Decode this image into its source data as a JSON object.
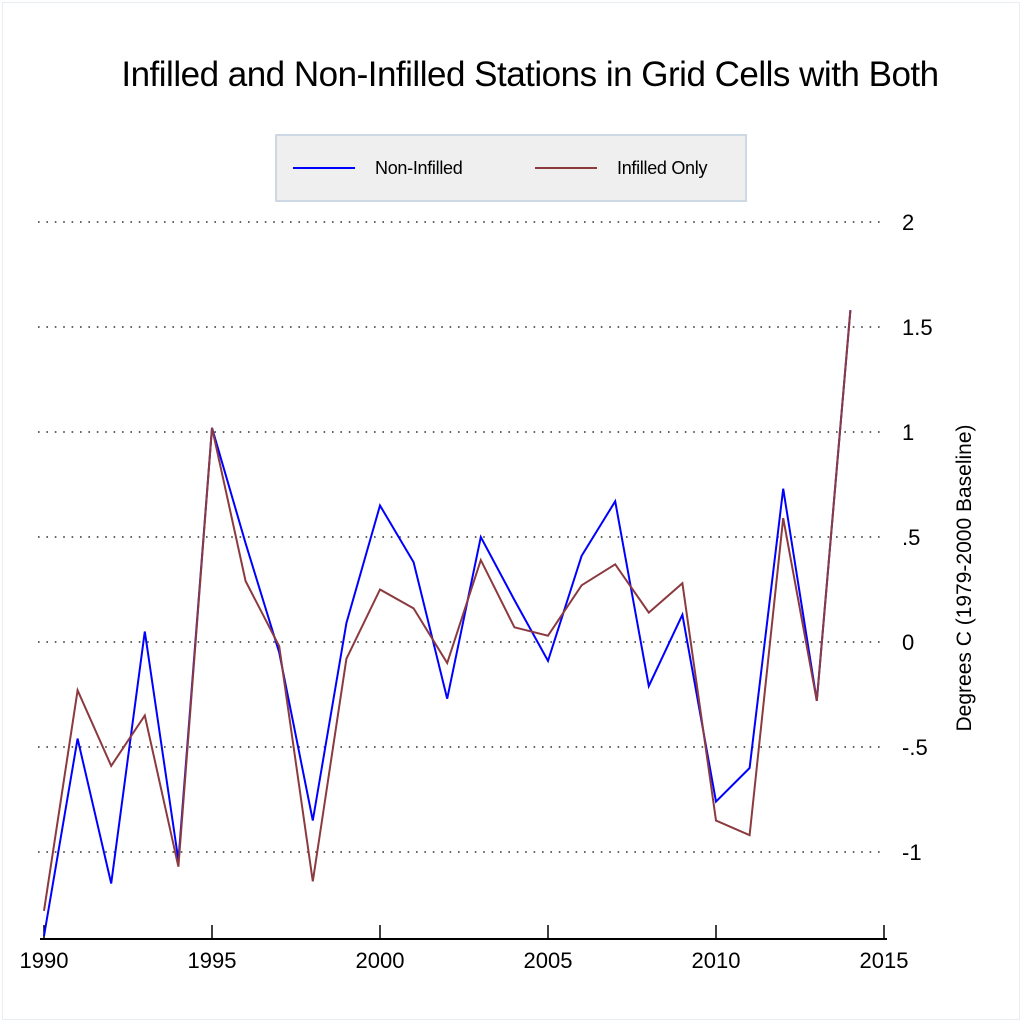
{
  "chart_data": {
    "type": "line",
    "title": "Infilled and Non-Infilled Stations in Grid Cells with Both",
    "xlabel": "",
    "ylabel": "Degrees C (1979-2000 Baseline)",
    "xlim": [
      1990,
      2015
    ],
    "ylim": [
      -1.4,
      2
    ],
    "x_ticks": [
      1990,
      1995,
      2000,
      2005,
      2010,
      2015
    ],
    "x_tick_labels": [
      "1990",
      "1995",
      "2000",
      "2005",
      "2010",
      "2015"
    ],
    "y_ticks": [
      2,
      1.5,
      1,
      0.5,
      0,
      -0.5,
      -1
    ],
    "y_tick_labels": [
      "2",
      "1.5",
      "1",
      ".5",
      "0",
      "-.5",
      "-1"
    ],
    "y_axis_side": "right",
    "grid": "horizontal-dotted",
    "legend_position": "top-center",
    "x": [
      1990,
      1991,
      1992,
      1993,
      1994,
      1995,
      1996,
      1997,
      1998,
      1999,
      2000,
      2001,
      2002,
      2003,
      2004,
      2005,
      2006,
      2007,
      2008,
      2009,
      2010,
      2011,
      2012,
      2013,
      2014
    ],
    "series": [
      {
        "name": "Non-Infilled",
        "color": "#0000ff",
        "values": [
          -1.4,
          -0.46,
          -1.15,
          0.05,
          -1.04,
          1.02,
          0.47,
          -0.05,
          -0.85,
          0.09,
          0.65,
          0.38,
          -0.27,
          0.5,
          0.2,
          -0.09,
          0.41,
          0.67,
          -0.21,
          0.13,
          -0.76,
          -0.6,
          0.73,
          -0.28,
          1.58
        ]
      },
      {
        "name": "Infilled Only",
        "color": "#8b3a3f",
        "values": [
          -1.28,
          -0.23,
          -0.59,
          -0.35,
          -1.07,
          1.02,
          0.29,
          -0.02,
          -1.14,
          -0.08,
          0.25,
          0.16,
          -0.1,
          0.39,
          0.07,
          0.03,
          0.27,
          0.37,
          0.14,
          0.28,
          -0.85,
          -0.92,
          0.59,
          -0.28,
          1.58
        ]
      }
    ]
  }
}
